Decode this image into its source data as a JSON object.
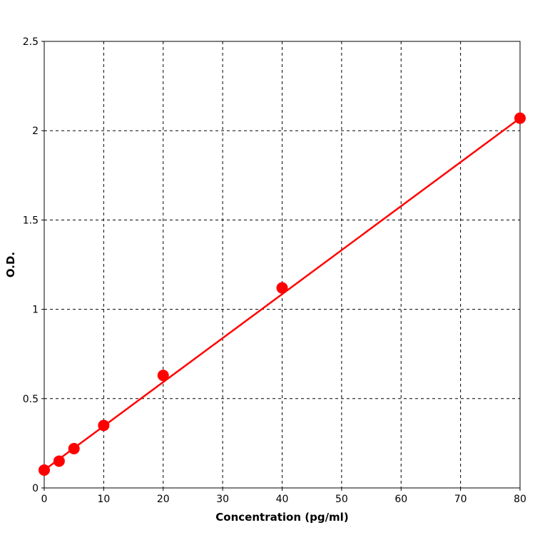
{
  "chart_data": {
    "type": "line",
    "title": "",
    "xlabel": "Concentration (pg/ml)",
    "ylabel": "O.D.",
    "xlim": [
      0,
      80
    ],
    "ylim": [
      0,
      2.5
    ],
    "x_ticks": [
      "0",
      "10",
      "20",
      "30",
      "40",
      "50",
      "60",
      "70",
      "80"
    ],
    "y_ticks": [
      "0",
      "0.5",
      "1",
      "1.5",
      "2",
      "2.5"
    ],
    "grid": true,
    "grid_style": "dashed",
    "series": [
      {
        "color": "#ff0000",
        "points": [
          {
            "x": 0,
            "y": 0.1
          },
          {
            "x": 2.5,
            "y": 0.15
          },
          {
            "x": 5,
            "y": 0.22
          },
          {
            "x": 10,
            "y": 0.35
          },
          {
            "x": 20,
            "y": 0.63
          },
          {
            "x": 40,
            "y": 1.12
          },
          {
            "x": 80,
            "y": 2.07
          }
        ]
      }
    ],
    "fit_line": {
      "color": "#ff0000",
      "from": {
        "x": 0,
        "y": 0.1
      },
      "to": {
        "x": 80,
        "y": 2.07
      }
    }
  }
}
